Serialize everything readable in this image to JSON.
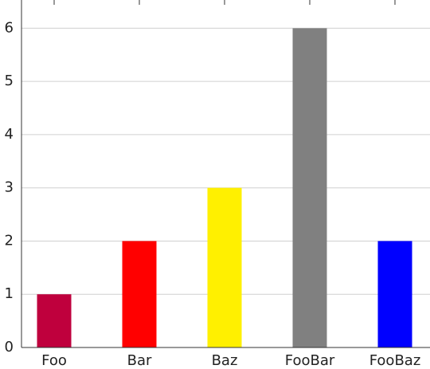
{
  "chart_data": {
    "type": "bar",
    "categories": [
      "Foo",
      "Bar",
      "Baz",
      "FooBar",
      "FooBaz"
    ],
    "values": [
      1,
      2,
      3,
      6,
      2
    ],
    "colors": [
      "#bf003d",
      "#ff0000",
      "#fff000",
      "#808080",
      "#0000ff"
    ],
    "ylim": [
      0,
      6.5
    ],
    "yticks": [
      0,
      1,
      2,
      3,
      4,
      5,
      6
    ],
    "grid": true
  }
}
